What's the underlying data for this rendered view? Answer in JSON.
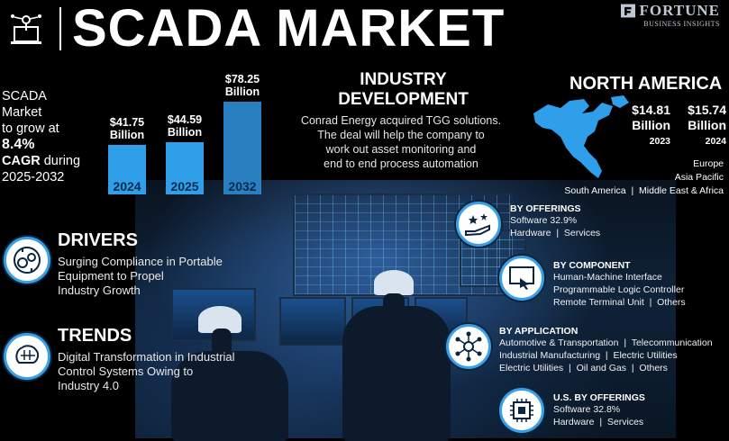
{
  "brand": {
    "name": "FORTUNE",
    "sub": "BUSINESS INSIGHTS"
  },
  "title": "SCADA MARKET",
  "growth": {
    "line1": "SCADA",
    "line2": "Market",
    "line3": "to grow at",
    "cagr": "8.4%",
    "line5a": "CAGR",
    "line5b": " during",
    "period": "2025-2032"
  },
  "chart_data": {
    "type": "bar",
    "categories": [
      "2024",
      "2025",
      "2032"
    ],
    "values": [
      41.75,
      44.59,
      78.25
    ],
    "labels": [
      "$41.75 Billion",
      "$44.59 Billion",
      "$78.25 Billion"
    ],
    "label_lines": [
      [
        "$41.75",
        "Billion"
      ],
      [
        "$44.59",
        "Billion"
      ],
      [
        "$78.25",
        "Billion"
      ]
    ],
    "colors": [
      "#2f9fea",
      "#2f9fea",
      "#2a7fc0"
    ]
  },
  "industry": {
    "heading1": "INDUSTRY",
    "heading2": "DEVELOPMENT",
    "lines": [
      "Conrad Energy acquired TGG solutions.",
      "The deal will help the company to",
      "work out asset monitoring and",
      "end to end process automation"
    ]
  },
  "north_america": {
    "title": "NORTH AMERICA",
    "val2023": "$14.81",
    "unit2023": "Billion",
    "yr2023": "2023",
    "val2024": "$15.74",
    "unit2024": "Billion",
    "yr2024": "2024",
    "regions": [
      "Europe",
      "Asia Pacific",
      "South America  |  Middle East & Africa"
    ]
  },
  "drivers": {
    "heading": "DRIVERS",
    "lines": [
      "Surging Compliance in Portable",
      "Equipment to Propel",
      "Industry Growth"
    ]
  },
  "trends": {
    "heading": "TRENDS",
    "lines": [
      "Digital Transformation in Industrial",
      "Control Systems Owing to",
      "Industry 4.0"
    ]
  },
  "segments": [
    {
      "heading": "BY OFFERINGS",
      "lines": [
        "Software 32.9%",
        "Hardware  |  Services"
      ],
      "icon": "hand-stars-icon"
    },
    {
      "heading": "BY COMPONENT",
      "lines": [
        "Human-Machine Interface",
        "Programmable Logic Controller",
        "Remote Terminal Unit  |  Others"
      ],
      "icon": "touch-screen-icon"
    },
    {
      "heading": "BY APPLICATION",
      "lines": [
        "Automotive & Transportation  |  Telecommunication",
        "Industrial Manufacturing  |  Electric Utilities",
        "Electric Utilities  |  Oil and Gas  |  Others"
      ],
      "icon": "network-icon"
    },
    {
      "heading": "U.S. BY OFFERINGS",
      "lines": [
        "Software 32.8%",
        "Hardware  |  Services"
      ],
      "icon": "chip-icon"
    }
  ],
  "colors": {
    "accent": "#2f9fea",
    "dark_accent": "#2a7fc0"
  }
}
